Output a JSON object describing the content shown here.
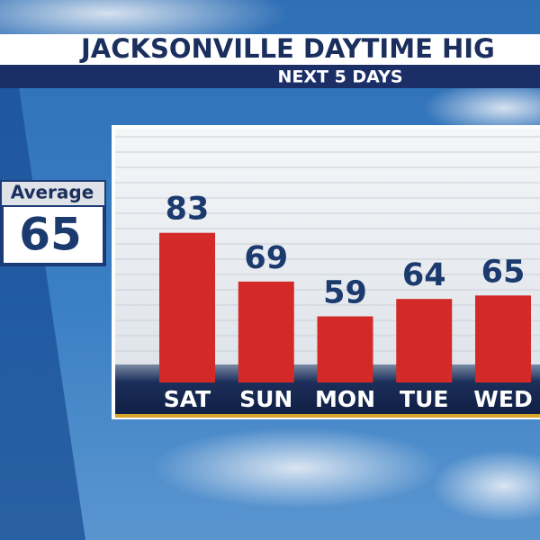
{
  "chart_data": {
    "type": "bar",
    "title": "JACKSONVILLE DAYTIME HIG",
    "subtitle": "NEXT 5 DAYS",
    "categories": [
      "SAT",
      "SUN",
      "MON",
      "TUE",
      "WED"
    ],
    "values": [
      83,
      69,
      59,
      64,
      65
    ],
    "color": "#d32a28",
    "ylim": [
      40,
      108
    ],
    "average": {
      "label": "Average",
      "value": 65
    }
  }
}
